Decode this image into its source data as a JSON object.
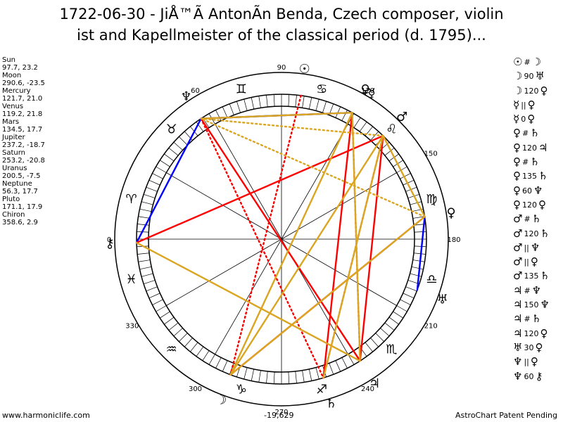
{
  "title_line1": "1722-06-30  - JiÅ™Ã AntonÃn Benda, Czech composer, violin",
  "title_line2": "ist and Kapellmeister of the classical period (d. 1795)...",
  "planets": [
    {
      "name": "Sun",
      "coords": "97.7, 23.2"
    },
    {
      "name": "Moon",
      "coords": "290.6, -23.5"
    },
    {
      "name": "Mercury",
      "coords": "121.7, 21.0"
    },
    {
      "name": "Venus",
      "coords": "119.2, 21.8"
    },
    {
      "name": "Mars",
      "coords": "134.5, 17.7"
    },
    {
      "name": "Jupiter",
      "coords": "237.2, -18.7"
    },
    {
      "name": "Saturn",
      "coords": "253.2, -20.8"
    },
    {
      "name": "Uranus",
      "coords": "200.5, -7.5"
    },
    {
      "name": "Neptune",
      "coords": "56.3, 17.7"
    },
    {
      "name": "Pluto",
      "coords": "171.1, 17.9"
    },
    {
      "name": "Chiron",
      "coords": "358.6, 2.9"
    }
  ],
  "aspects": [
    {
      "p1": "☉",
      "op": "#",
      "p2": "☽"
    },
    {
      "p1": "☽",
      "op": "90",
      "p2": "♅"
    },
    {
      "p1": "☽",
      "op": "120",
      "p2": "♀"
    },
    {
      "p1": "☿",
      "op": "||",
      "p2": "♀"
    },
    {
      "p1": "☿",
      "op": "0",
      "p2": "♀"
    },
    {
      "p1": "♀",
      "op": "#",
      "p2": "♄"
    },
    {
      "p1": "♀",
      "op": "120",
      "p2": "♃"
    },
    {
      "p1": "♀",
      "op": "#",
      "p2": "♄"
    },
    {
      "p1": "♀",
      "op": "135",
      "p2": "♄"
    },
    {
      "p1": "♀",
      "op": "60",
      "p2": "♆"
    },
    {
      "p1": "♀",
      "op": "120",
      "p2": "♀"
    },
    {
      "p1": "♂",
      "op": "#",
      "p2": "♄"
    },
    {
      "p1": "♂",
      "op": "120",
      "p2": "♄"
    },
    {
      "p1": "♂",
      "op": "||",
      "p2": "♆"
    },
    {
      "p1": "♂",
      "op": "||",
      "p2": "♀"
    },
    {
      "p1": "♂",
      "op": "135",
      "p2": "♄"
    },
    {
      "p1": "♃",
      "op": "#",
      "p2": "♆"
    },
    {
      "p1": "♃",
      "op": "150",
      "p2": "♆"
    },
    {
      "p1": "♃",
      "op": "#",
      "p2": "♄"
    },
    {
      "p1": "♃",
      "op": "120",
      "p2": "♀"
    },
    {
      "p1": "♅",
      "op": "30",
      "p2": "♀"
    },
    {
      "p1": "♆",
      "op": "||",
      "p2": "♀"
    },
    {
      "p1": "♆",
      "op": "60",
      "p2": "⚷"
    }
  ],
  "wheel": {
    "degree_labels": [
      "90",
      "60",
      "0",
      "330",
      "300",
      "270",
      "240",
      "210",
      "180",
      "150",
      "120"
    ],
    "degree_values": [
      90,
      60,
      0,
      330,
      300,
      270,
      240,
      210,
      180,
      150,
      120
    ],
    "signs": [
      {
        "glyph": "♈",
        "lon": 15
      },
      {
        "glyph": "♉",
        "lon": 45
      },
      {
        "glyph": "♊",
        "lon": 75
      },
      {
        "glyph": "♋",
        "lon": 105
      },
      {
        "glyph": "♌",
        "lon": 135
      },
      {
        "glyph": "♍",
        "lon": 165
      },
      {
        "glyph": "♎",
        "lon": 195
      },
      {
        "glyph": "♏",
        "lon": 225
      },
      {
        "glyph": "♐",
        "lon": 255
      },
      {
        "glyph": "♑",
        "lon": 285
      },
      {
        "glyph": "♒",
        "lon": 315
      },
      {
        "glyph": "♓",
        "lon": 345
      }
    ],
    "bodies": [
      {
        "key": "sun",
        "glyph": "☉",
        "lon": 97.7
      },
      {
        "key": "moon",
        "glyph": "☽",
        "lon": 290.6
      },
      {
        "key": "mercury",
        "glyph": "☿",
        "lon": 121.7
      },
      {
        "key": "venus",
        "glyph": "♀",
        "lon": 119.2
      },
      {
        "key": "mars",
        "glyph": "♂",
        "lon": 134.5
      },
      {
        "key": "jupiter",
        "glyph": "♃",
        "lon": 237.2
      },
      {
        "key": "saturn",
        "glyph": "♄",
        "lon": 253.2
      },
      {
        "key": "uranus",
        "glyph": "♅",
        "lon": 200.5
      },
      {
        "key": "neptune",
        "glyph": "♆",
        "lon": 56.3
      },
      {
        "key": "pluto",
        "glyph": "♀",
        "lon": 171.1
      },
      {
        "key": "chiron",
        "glyph": "⚷",
        "lon": 358.6
      }
    ],
    "aspect_lines": [
      {
        "a": "venus",
        "b": "neptune",
        "color": "#0000ff",
        "style": "solid"
      },
      {
        "a": "neptune",
        "b": "chiron",
        "color": "#0000ff",
        "style": "solid"
      },
      {
        "a": "pluto",
        "b": "uranus",
        "color": "#0000ff",
        "style": "solid"
      },
      {
        "a": "mars",
        "b": "chiron",
        "color": "#ff0000",
        "style": "solid"
      },
      {
        "a": "neptune",
        "b": "jupiter",
        "color": "#ff0000",
        "style": "solid"
      },
      {
        "a": "venus",
        "b": "saturn",
        "color": "#ff0000",
        "style": "solid"
      },
      {
        "a": "mars",
        "b": "jupiter",
        "color": "#ff0000",
        "style": "solid"
      },
      {
        "a": "pluto",
        "b": "moon",
        "color": "#ff0000",
        "style": "solid"
      },
      {
        "a": "sun",
        "b": "moon",
        "color": "#ff0000",
        "style": "dotted"
      },
      {
        "a": "venus",
        "b": "jupiter",
        "color": "#ff0000",
        "style": "dotted"
      },
      {
        "a": "neptune",
        "b": "saturn",
        "color": "#ff0000",
        "style": "dotted"
      },
      {
        "a": "mars",
        "b": "saturn",
        "color": "#ff0000",
        "style": "dotted"
      },
      {
        "a": "venus",
        "b": "moon",
        "color": "#daa520",
        "style": "solid"
      },
      {
        "a": "mars",
        "b": "moon",
        "color": "#daa520",
        "style": "solid"
      },
      {
        "a": "venus",
        "b": "jupiter",
        "color": "#daa520",
        "style": "solid"
      },
      {
        "a": "mars",
        "b": "saturn",
        "color": "#daa520",
        "style": "solid"
      },
      {
        "a": "pluto",
        "b": "mars",
        "color": "#daa520",
        "style": "solid"
      },
      {
        "a": "pluto",
        "b": "moon",
        "color": "#daa520",
        "style": "solid"
      },
      {
        "a": "jupiter",
        "b": "chiron",
        "color": "#daa520",
        "style": "solid"
      },
      {
        "a": "venus",
        "b": "neptune",
        "color": "#daa520",
        "style": "solid"
      },
      {
        "a": "mars",
        "b": "neptune",
        "color": "#daa520",
        "style": "dotted"
      },
      {
        "a": "pluto",
        "b": "neptune",
        "color": "#daa520",
        "style": "dotted"
      }
    ]
  },
  "footer_left": "www.harmoniclife.com",
  "footer_center": "-19,629",
  "footer_right": "AstroChart Patent Pending"
}
